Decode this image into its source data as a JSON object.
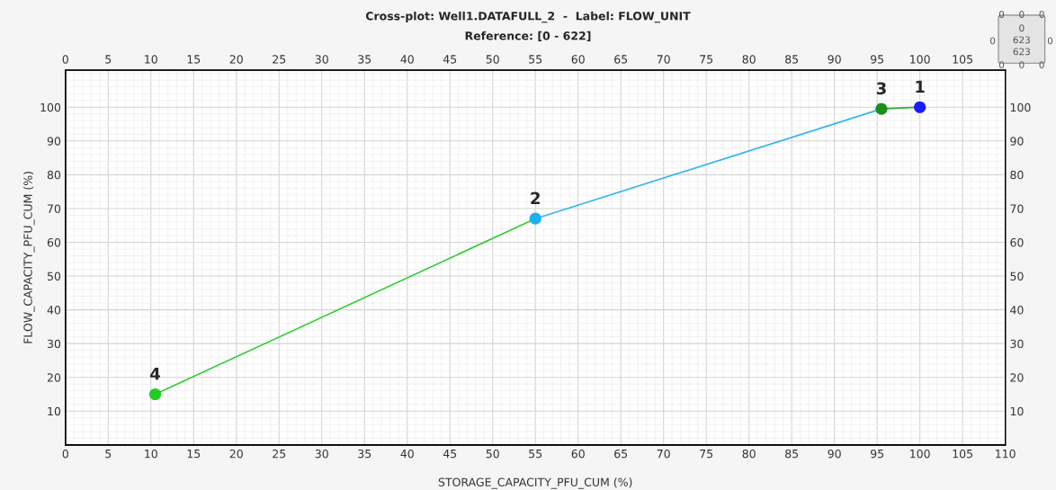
{
  "chart_data": {
    "type": "line",
    "title": "Cross-plot: Well1.DATAFULL_2  -  Label: FLOW_UNIT",
    "subtitle": "Reference: [0 - 622]",
    "xlabel": "STORAGE_CAPACITY_PFU_CUM (%)",
    "ylabel": "FLOW_CAPACITY_PFU_CUM (%)",
    "xlim": [
      0,
      110
    ],
    "xticks": [
      0,
      5,
      10,
      15,
      20,
      25,
      30,
      35,
      40,
      45,
      50,
      55,
      60,
      65,
      70,
      75,
      80,
      85,
      90,
      95,
      100,
      105,
      110
    ],
    "x2lim": [
      0,
      110
    ],
    "x2ticks": [
      0,
      5,
      10,
      15,
      20,
      25,
      30,
      35,
      40,
      45,
      50,
      55,
      60,
      65,
      70,
      75,
      80,
      85,
      90,
      95,
      100,
      105
    ],
    "ylim": [
      0,
      111
    ],
    "yticks": [
      10,
      20,
      30,
      40,
      50,
      60,
      70,
      80,
      90,
      100
    ],
    "y2lim": [
      0,
      111
    ],
    "y2ticks": [
      10,
      20,
      30,
      40,
      50,
      60,
      70,
      80,
      90,
      100
    ],
    "grid": true,
    "series": [
      {
        "x": [
          10.5,
          55
        ],
        "values": [
          15,
          67
        ],
        "color": "#33cc33",
        "marker": "none"
      },
      {
        "x": [
          55,
          95.5
        ],
        "values": [
          67,
          99.5
        ],
        "color": "#33b5f0",
        "marker": "none"
      },
      {
        "x": [
          95.5,
          100
        ],
        "values": [
          99.5,
          100
        ],
        "color": "#33aa33",
        "marker": "none"
      },
      {
        "type": "scatter",
        "marker": "circle",
        "x": [
          100,
          55,
          95.5,
          10.5
        ],
        "values": [
          100,
          67,
          99.5,
          15
        ],
        "colors": [
          "#1a1aff",
          "#1eb0f0",
          "#1a8f1a",
          "#22cc22"
        ]
      }
    ],
    "annotations": [
      {
        "text": "1",
        "x": 100,
        "y": 100
      },
      {
        "text": "2",
        "x": 55,
        "y": 67
      },
      {
        "text": "3",
        "x": 95.5,
        "y": 99.5
      },
      {
        "text": "4",
        "x": 10.5,
        "y": 15
      },
      "0",
      "0",
      "0",
      "0",
      "0",
      "0",
      "0",
      "0",
      "0",
      "623",
      "623"
    ]
  }
}
